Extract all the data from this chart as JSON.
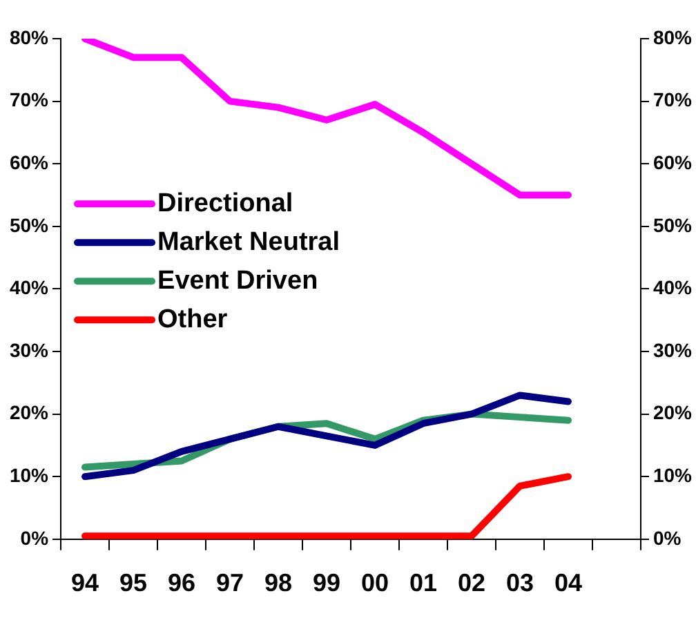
{
  "chart_data": {
    "type": "line",
    "categories": [
      "94",
      "95",
      "96",
      "97",
      "98",
      "99",
      "00",
      "01",
      "02",
      "03",
      "04",
      null
    ],
    "series": [
      {
        "name": "Directional",
        "color": "#ff00ff",
        "values": [
          80,
          77,
          77,
          70,
          69,
          67,
          69.5,
          65,
          60,
          55,
          55,
          null
        ]
      },
      {
        "name": "Market Neutral",
        "color": "#000080",
        "values": [
          10,
          11,
          14,
          16,
          18,
          16.5,
          15,
          18.5,
          20,
          23,
          22,
          null
        ]
      },
      {
        "name": "Event Driven",
        "color": "#339966",
        "values": [
          11.5,
          12,
          12.5,
          16,
          18,
          18.5,
          16,
          19,
          20,
          19.5,
          19,
          null
        ]
      },
      {
        "name": "Other",
        "color": "#ff0000",
        "values": [
          0.5,
          0.5,
          0.5,
          0.5,
          0.5,
          0.5,
          0.5,
          0.5,
          0.5,
          8.5,
          10,
          null
        ]
      }
    ],
    "ylim": [
      0,
      80
    ],
    "yticks": [
      {
        "value": 0,
        "label": "0%"
      },
      {
        "value": 10,
        "label": "10%"
      },
      {
        "value": 20,
        "label": "20%"
      },
      {
        "value": 30,
        "label": "30%"
      },
      {
        "value": 40,
        "label": "40%"
      },
      {
        "value": 50,
        "label": "50%"
      },
      {
        "value": 60,
        "label": "60%"
      },
      {
        "value": 70,
        "label": "70%"
      },
      {
        "value": 80,
        "label": "80%"
      }
    ],
    "y2lim": [
      0,
      80
    ],
    "y2ticks": [
      {
        "value": 0,
        "label": "0%"
      },
      {
        "value": 10,
        "label": "10%"
      },
      {
        "value": 20,
        "label": "20%"
      },
      {
        "value": 30,
        "label": "30%"
      },
      {
        "value": 40,
        "label": "40%"
      },
      {
        "value": 50,
        "label": "50%"
      },
      {
        "value": 60,
        "label": "60%"
      },
      {
        "value": 70,
        "label": "70%"
      },
      {
        "value": 80,
        "label": "80%"
      }
    ],
    "grid": false,
    "legend": "left",
    "marker": "none",
    "line_style": "solid"
  }
}
